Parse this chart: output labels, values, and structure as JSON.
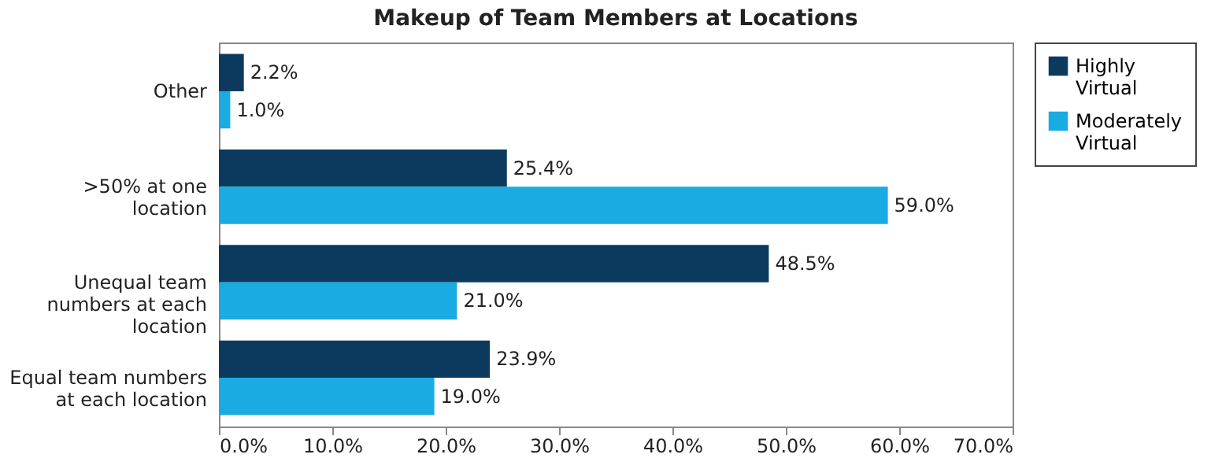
{
  "chart_data": {
    "type": "bar",
    "orientation": "horizontal",
    "title": "Makeup of Team Members at Locations",
    "categories": [
      "Other",
      ">50% at one location",
      "Unequal team numbers at each location",
      "Equal team numbers at each location"
    ],
    "series": [
      {
        "name": "Highly Virtual",
        "color": "#0b3a5e",
        "values": [
          2.2,
          25.4,
          48.5,
          23.9
        ],
        "value_labels": [
          "2.2%",
          "25.4%",
          "48.5%",
          "23.9%"
        ]
      },
      {
        "name": "Moderately Virtual",
        "color": "#1aabe2",
        "values": [
          1.0,
          59.0,
          21.0,
          19.0
        ],
        "value_labels": [
          "1.0%",
          "59.0%",
          "21.0%",
          "19.0%"
        ]
      }
    ],
    "xlim": [
      0,
      70
    ],
    "xticks": [
      {
        "value": 0,
        "label": "0.0%"
      },
      {
        "value": 10,
        "label": "10.0%"
      },
      {
        "value": 20,
        "label": "20.0%"
      },
      {
        "value": 30,
        "label": "30.0%"
      },
      {
        "value": 40,
        "label": "40.0%"
      },
      {
        "value": 50,
        "label": "50.0%"
      },
      {
        "value": 60,
        "label": "60.0%"
      },
      {
        "value": 70,
        "label": "70.0%"
      }
    ],
    "grid": false,
    "legend": "right"
  }
}
